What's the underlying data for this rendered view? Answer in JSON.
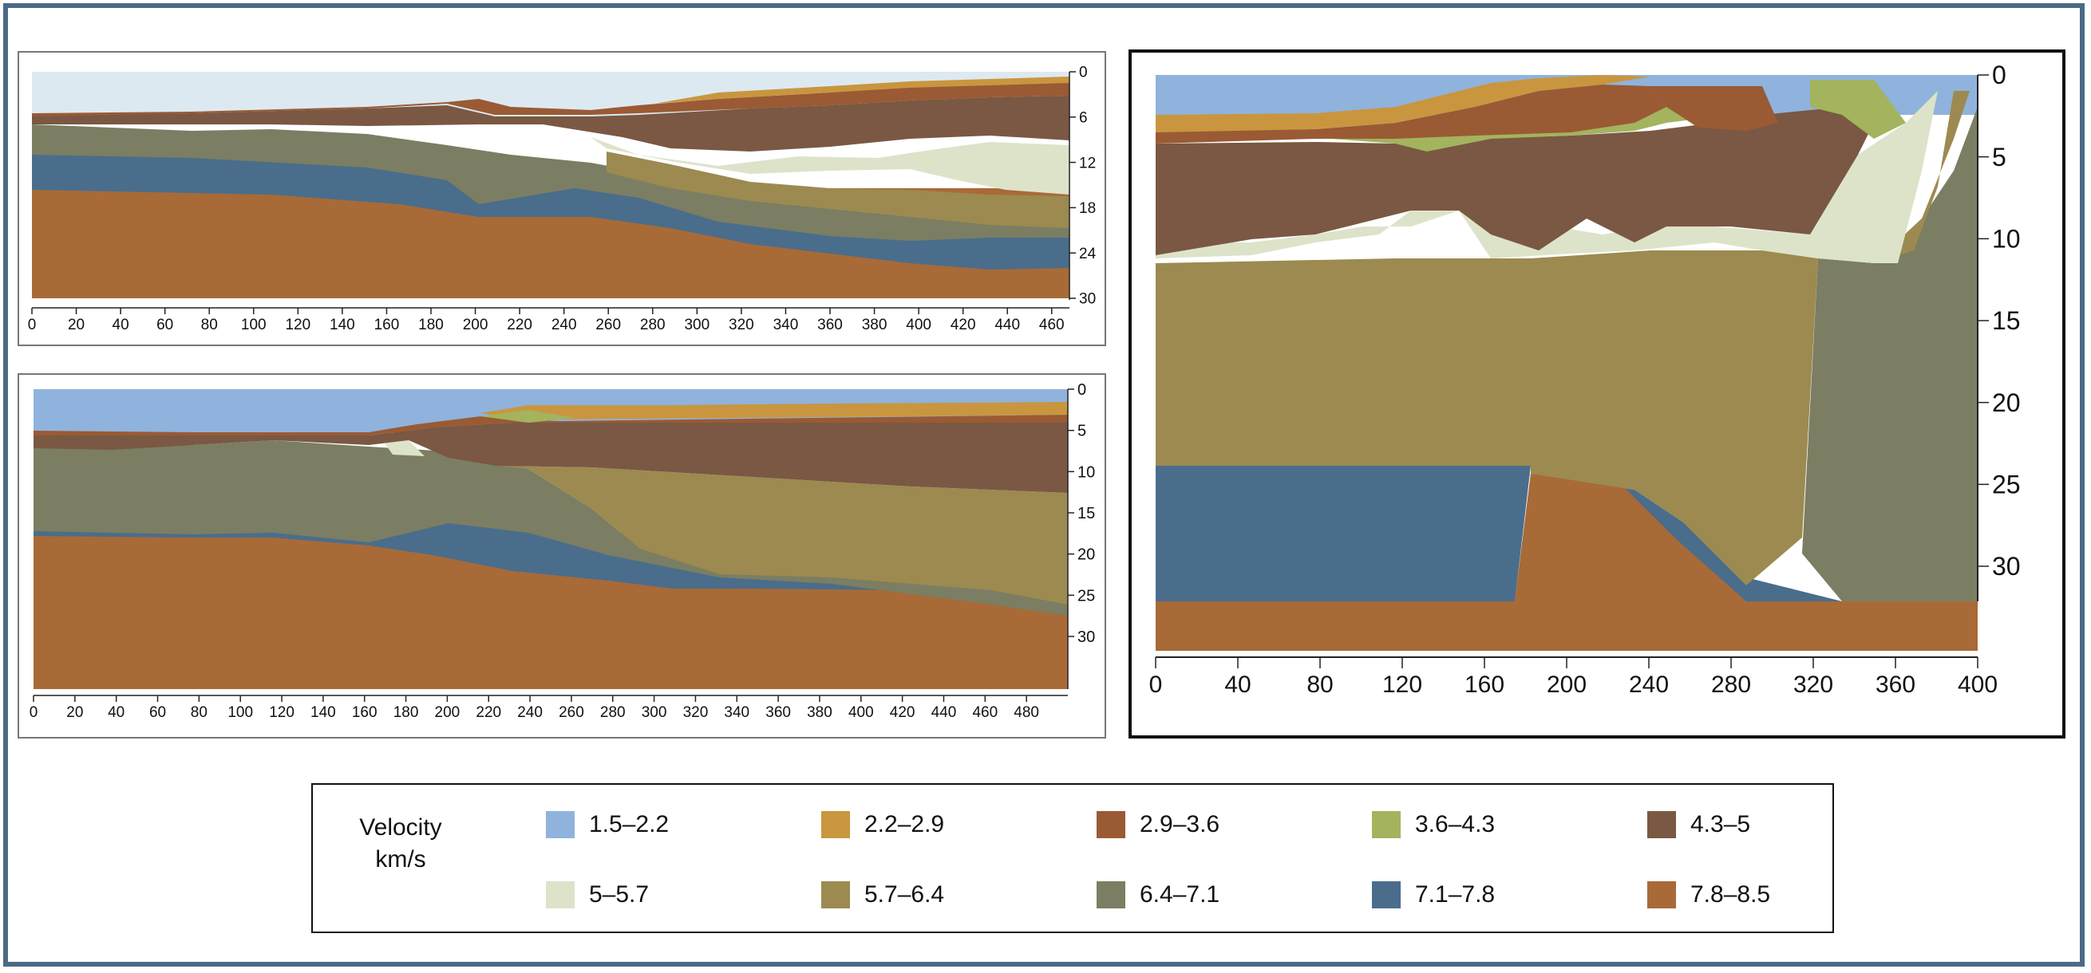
{
  "colors": {
    "frame": "#4a6a86",
    "water": "#dde9f1",
    "v1": "#8fb3dc",
    "v2": "#c9963f",
    "v3": "#9a5a34",
    "v4": "#a3b35e",
    "v5": "#7a5843",
    "v6": "#dde3c9",
    "v7": "#9c8a50",
    "v8": "#7b7e62",
    "v9": "#4a6d8c",
    "v10": "#a86a37",
    "contour": "#e8ead0"
  },
  "legend": {
    "title_line1": "Velocity",
    "title_line2": "km/s",
    "items": [
      {
        "label": "1.5–2.2",
        "color": "#8fb3dc"
      },
      {
        "label": "2.2–2.9",
        "color": "#c9963f"
      },
      {
        "label": "2.9–3.6",
        "color": "#9a5a34"
      },
      {
        "label": "3.6–4.3",
        "color": "#a3b35e"
      },
      {
        "label": "4.3–5",
        "color": "#7a5843"
      },
      {
        "label": "5–5.7",
        "color": "#dde3c9"
      },
      {
        "label": "5.7–6.4",
        "color": "#9c8a50"
      },
      {
        "label": "6.4–7.1",
        "color": "#7b7e62"
      },
      {
        "label": "7.1–7.8",
        "color": "#4a6d8c"
      },
      {
        "label": "7.8–8.5",
        "color": "#a86a37"
      }
    ]
  },
  "panel_a": {
    "x_ticks": [
      "0",
      "20",
      "40",
      "60",
      "80",
      "100",
      "120",
      "140",
      "160",
      "180",
      "200",
      "220",
      "240",
      "260",
      "280",
      "300",
      "320",
      "340",
      "360",
      "380",
      "400",
      "420",
      "440",
      "460"
    ],
    "y_ticks": [
      "0",
      "6",
      "12",
      "18",
      "24",
      "30"
    ]
  },
  "panel_b": {
    "x_ticks": [
      "0",
      "20",
      "40",
      "60",
      "80",
      "100",
      "120",
      "140",
      "160",
      "180",
      "200",
      "220",
      "240",
      "260",
      "280",
      "300",
      "320",
      "340",
      "360",
      "380",
      "400",
      "420",
      "440",
      "460",
      "480"
    ],
    "y_ticks": [
      "0",
      "5",
      "10",
      "15",
      "20",
      "25",
      "30"
    ]
  },
  "panel_c": {
    "x_ticks": [
      "0",
      "40",
      "80",
      "120",
      "160",
      "200",
      "240",
      "280",
      "320",
      "360",
      "400"
    ],
    "y_ticks": [
      "0",
      "5",
      "10",
      "15",
      "20",
      "25",
      "30"
    ]
  }
}
